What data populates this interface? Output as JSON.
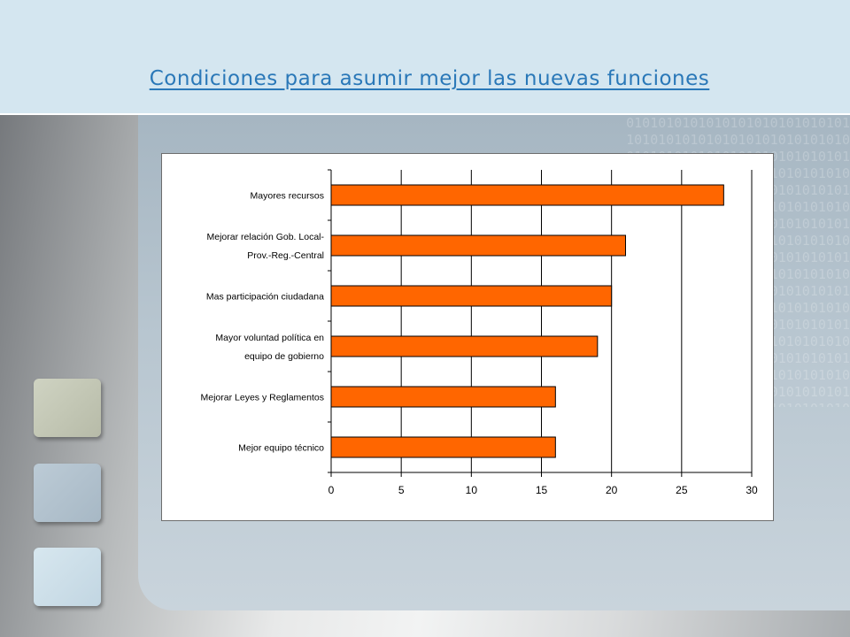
{
  "slide": {
    "title": "Condiciones para asumir mejor las nuevas funciones",
    "colors": {
      "header": "#d4e6f0",
      "title": "#2a78b8",
      "panel": "#b8c6d0",
      "bar": "#ff6600"
    }
  },
  "chart_data": {
    "type": "bar",
    "orientation": "horizontal",
    "categories": [
      [
        "Mayores recursos"
      ],
      [
        "Mejorar relación Gob. Local-",
        "Prov.-Reg.-Central"
      ],
      [
        "Mas participación ciudadana"
      ],
      [
        "Mayor voluntad política en",
        "equipo de gobierno"
      ],
      [
        "Mejorar Leyes y Reglamentos"
      ],
      [
        "Mejor equipo técnico"
      ]
    ],
    "values": [
      28,
      21,
      20,
      19,
      16,
      16
    ],
    "xlim": [
      0,
      30
    ],
    "xticks": [
      "0",
      "5",
      "10",
      "15",
      "20",
      "25",
      "30"
    ],
    "grid": true,
    "bar_color": "#ff6600",
    "legend": "none"
  }
}
